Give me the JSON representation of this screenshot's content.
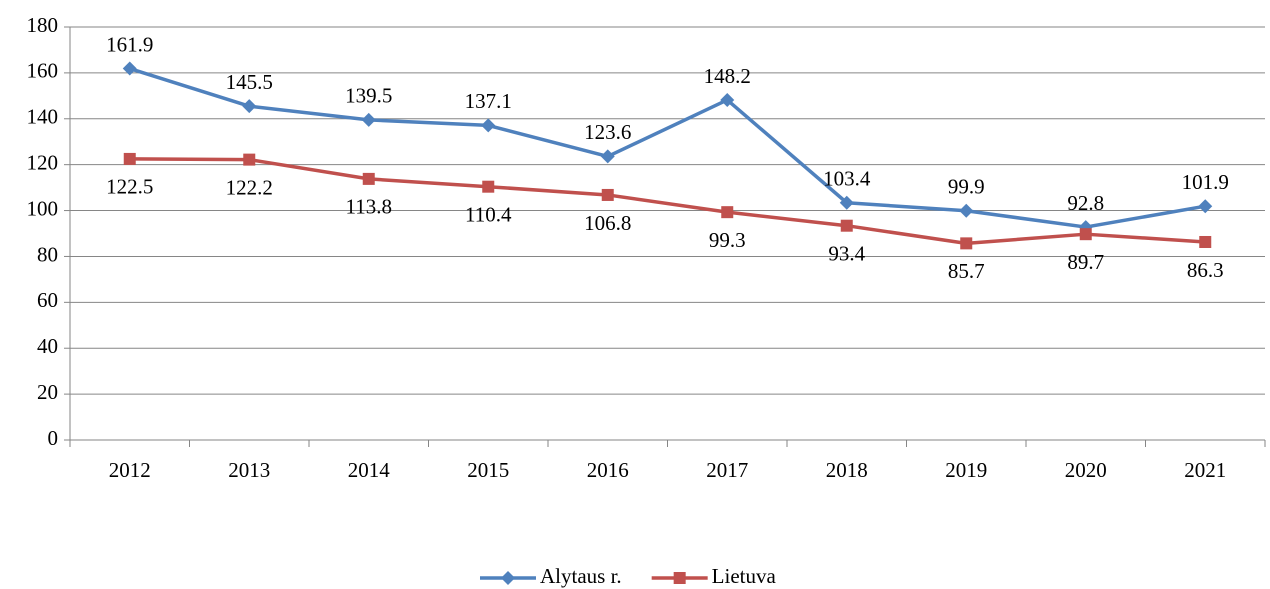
{
  "chart_data": {
    "type": "line",
    "categories": [
      "2012",
      "2013",
      "2014",
      "2015",
      "2016",
      "2017",
      "2018",
      "2019",
      "2020",
      "2021"
    ],
    "series": [
      {
        "name": "Alytaus r.",
        "color": "#4f81bd",
        "marker": "diamond",
        "label_position": "above",
        "values": [
          161.9,
          145.5,
          139.5,
          137.1,
          123.6,
          148.2,
          103.4,
          99.9,
          92.8,
          101.9
        ]
      },
      {
        "name": "Lietuva",
        "color": "#c0504d",
        "marker": "square",
        "label_position": "below",
        "values": [
          122.5,
          122.2,
          113.8,
          110.4,
          106.8,
          99.3,
          93.4,
          85.7,
          89.7,
          86.3
        ]
      }
    ],
    "ylim": [
      0,
      180
    ],
    "yticks": [
      0,
      20,
      40,
      60,
      80,
      100,
      120,
      140,
      160,
      180
    ],
    "grid": true,
    "legend": "bottom"
  }
}
